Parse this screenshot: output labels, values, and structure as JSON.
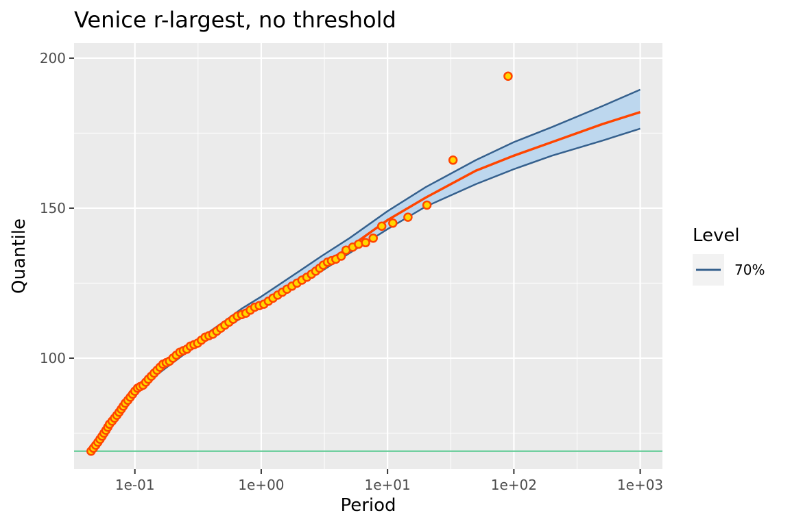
{
  "chart_data": {
    "type": "line",
    "title": "Venice r-largest, no threshold",
    "xlabel": "Period",
    "ylabel": "Quantile",
    "x_scale": "log10",
    "xlim": [
      0.033,
      1500
    ],
    "ylim": [
      63,
      205
    ],
    "x_ticks": [
      {
        "value": 0.1,
        "label": "1e-01"
      },
      {
        "value": 1,
        "label": "1e+00"
      },
      {
        "value": 10,
        "label": "1e+01"
      },
      {
        "value": 100,
        "label": "1e+02"
      },
      {
        "value": 1000,
        "label": "1e+03"
      }
    ],
    "y_ticks": [
      {
        "value": 100,
        "label": "100"
      },
      {
        "value": 150,
        "label": "150"
      },
      {
        "value": 200,
        "label": "200"
      }
    ],
    "grid": true,
    "threshold_line": {
      "y": 69,
      "color": "#66cc99"
    },
    "return_level": {
      "x": [
        0.045,
        0.06,
        0.08,
        0.1,
        0.15,
        0.2,
        0.3,
        0.5,
        0.7,
        1,
        2,
        3,
        5,
        10,
        20,
        50,
        100,
        200,
        500,
        1000
      ],
      "y": [
        69,
        76,
        83,
        88,
        95,
        99,
        104.5,
        110.5,
        114.5,
        118.5,
        126.5,
        131,
        137,
        146,
        153.5,
        162.5,
        167.5,
        172,
        178,
        182
      ],
      "color": "#ff4500"
    },
    "confidence_band": {
      "x": [
        0.045,
        0.06,
        0.08,
        0.1,
        0.15,
        0.2,
        0.3,
        0.5,
        0.7,
        1,
        2,
        3,
        5,
        10,
        20,
        50,
        100,
        200,
        500,
        1000
      ],
      "lower": [
        68.5,
        75.5,
        82.5,
        87.5,
        94.5,
        98.5,
        104,
        109.5,
        113.5,
        117,
        124.5,
        129,
        135,
        143,
        150.5,
        158,
        163,
        167.5,
        172.5,
        176.5
      ],
      "upper": [
        69.5,
        76.5,
        83.5,
        88.5,
        95.5,
        100,
        105.5,
        112,
        116.5,
        120.5,
        129,
        134,
        140,
        149,
        157,
        166,
        172,
        177,
        184,
        189.5
      ],
      "fill": "#bdd7ee",
      "line_color": "#35608d"
    },
    "points": {
      "x": [
        0.045,
        0.047,
        0.049,
        0.051,
        0.053,
        0.055,
        0.057,
        0.059,
        0.061,
        0.063,
        0.066,
        0.069,
        0.072,
        0.075,
        0.078,
        0.081,
        0.084,
        0.088,
        0.092,
        0.096,
        0.1,
        0.105,
        0.11,
        0.116,
        0.122,
        0.128,
        0.135,
        0.142,
        0.15,
        0.158,
        0.167,
        0.177,
        0.188,
        0.2,
        0.213,
        0.227,
        0.242,
        0.258,
        0.275,
        0.294,
        0.314,
        0.336,
        0.36,
        0.386,
        0.414,
        0.445,
        0.479,
        0.516,
        0.556,
        0.6,
        0.648,
        0.7,
        0.757,
        0.82,
        0.889,
        0.965,
        1.05,
        1.14,
        1.24,
        1.35,
        1.47,
        1.6,
        1.75,
        1.92,
        2.1,
        2.3,
        2.5,
        2.7,
        2.9,
        3.1,
        3.35,
        3.6,
        3.9,
        4.3,
        4.7,
        5.3,
        5.9,
        6.7,
        7.7,
        9.0,
        11.0,
        14.5,
        20.5,
        33.0,
        90.0
      ],
      "y": [
        69,
        70,
        71,
        72,
        73,
        74,
        75,
        76,
        77,
        78,
        79,
        80,
        81,
        82,
        83,
        84,
        85,
        86,
        87,
        88,
        89,
        90,
        90.5,
        91,
        92,
        93,
        94,
        95,
        96,
        97,
        98,
        98.5,
        99,
        100,
        101,
        102,
        102.5,
        103,
        104,
        104.5,
        105,
        106,
        107,
        107.5,
        108,
        109,
        110,
        111,
        112,
        113,
        114,
        114.5,
        115,
        116,
        117,
        117.5,
        118,
        119,
        120,
        121,
        122,
        123,
        124,
        125,
        126,
        127,
        128,
        129,
        130,
        131,
        132,
        132.5,
        133,
        134,
        136,
        137,
        138,
        138.5,
        140,
        144,
        145,
        147,
        151,
        166,
        194
      ],
      "fill": "#ffd700",
      "stroke": "#ff4500"
    },
    "legend": {
      "title": "Level",
      "position": "right",
      "entries": [
        {
          "label": "70%",
          "color": "#35608d"
        }
      ]
    }
  }
}
